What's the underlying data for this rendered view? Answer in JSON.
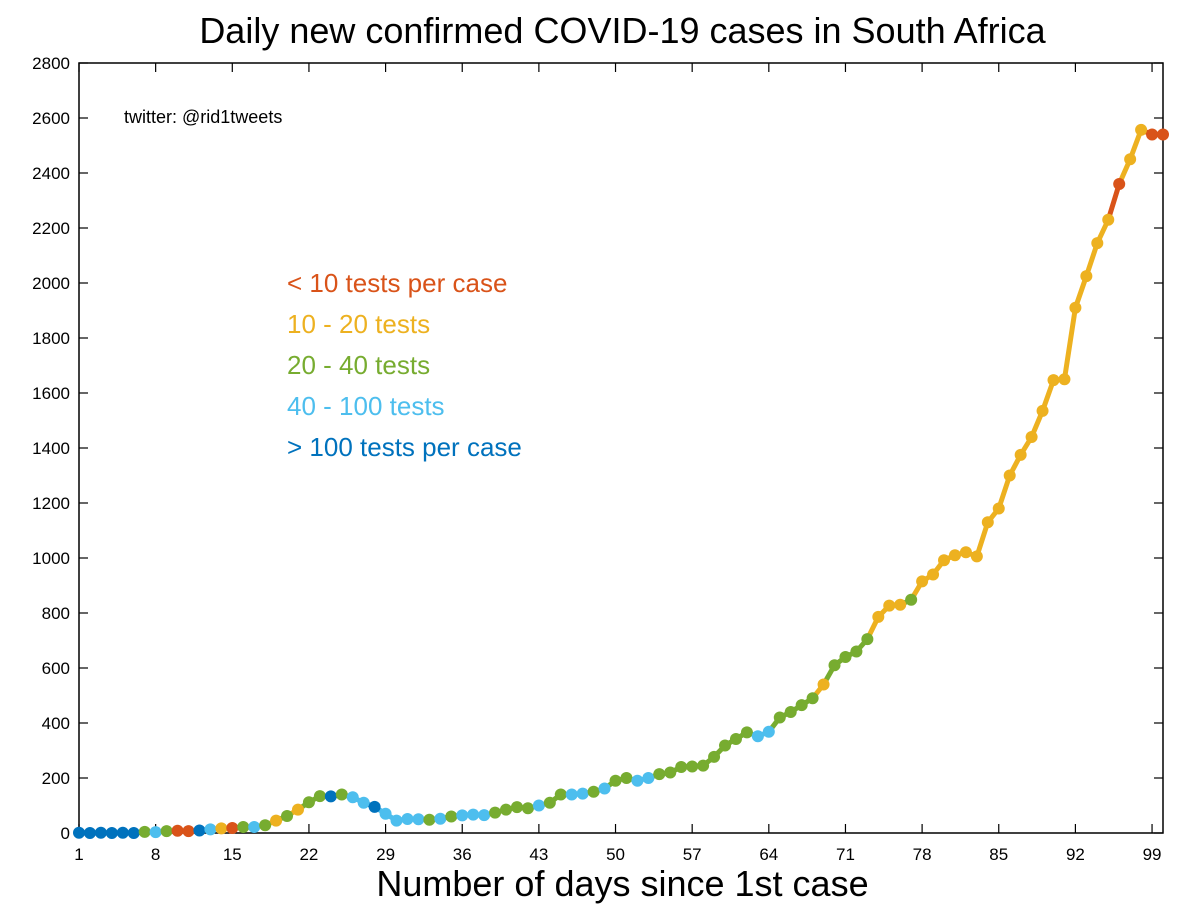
{
  "chart_data": {
    "type": "line",
    "title": "Daily new confirmed COVID-19 cases in South Africa",
    "xlabel": "Number of days since 1st case",
    "ylabel": "",
    "xlim": [
      1,
      100
    ],
    "ylim": [
      0,
      2800
    ],
    "x_ticks": [
      1,
      8,
      15,
      22,
      29,
      36,
      43,
      50,
      57,
      64,
      71,
      78,
      85,
      92,
      99
    ],
    "y_ticks": [
      0,
      200,
      400,
      600,
      800,
      1000,
      1200,
      1400,
      1600,
      1800,
      2000,
      2200,
      2400,
      2600,
      2800
    ],
    "annotation": "twitter: @rid1tweets",
    "categories": [
      {
        "key": "lt10",
        "label": "< 10 tests per case",
        "color": "#D95319"
      },
      {
        "key": "10-20",
        "label": "10 - 20 tests",
        "color": "#EDB120"
      },
      {
        "key": "20-40",
        "label": "20 - 40 tests",
        "color": "#77AC30"
      },
      {
        "key": "40-100",
        "label": "40 - 100 tests",
        "color": "#4DBEEE"
      },
      {
        "key": "gt100",
        "label": "> 100 tests per case",
        "color": "#0072BD"
      }
    ],
    "x": [
      1,
      2,
      3,
      4,
      5,
      6,
      7,
      8,
      9,
      10,
      11,
      12,
      13,
      14,
      15,
      16,
      17,
      18,
      19,
      20,
      21,
      22,
      23,
      24,
      25,
      26,
      27,
      28,
      29,
      30,
      31,
      32,
      33,
      34,
      35,
      36,
      37,
      38,
      39,
      40,
      41,
      42,
      43,
      44,
      45,
      46,
      47,
      48,
      49,
      50,
      51,
      52,
      53,
      54,
      55,
      56,
      57,
      58,
      59,
      60,
      61,
      62,
      63,
      64,
      65,
      66,
      67,
      68,
      69,
      70,
      71,
      72,
      73,
      74,
      75,
      76,
      77,
      78,
      79,
      80,
      81,
      82,
      83,
      84,
      85,
      86,
      87,
      88,
      89,
      90,
      91,
      92,
      93,
      94,
      95,
      96,
      97,
      98,
      99,
      100
    ],
    "y": [
      1,
      0,
      1,
      0,
      1,
      0,
      4,
      3,
      7,
      8,
      7,
      9,
      13,
      17,
      18,
      22,
      22,
      28,
      45,
      62,
      85,
      112,
      134,
      133,
      140,
      130,
      110,
      95,
      70,
      45,
      51,
      50,
      48,
      52,
      60,
      64,
      67,
      65,
      74,
      85,
      94,
      90,
      100,
      110,
      140,
      140,
      143,
      150,
      162,
      190,
      200,
      190,
      200,
      214,
      220,
      240,
      242,
      245,
      277,
      318,
      342,
      366,
      352,
      368,
      420,
      440,
      465,
      490,
      540,
      610,
      640,
      660,
      705,
      786,
      827,
      830,
      848,
      915,
      940,
      992,
      1010,
      1021,
      1006,
      1130,
      1180,
      1300,
      1375,
      1440,
      1535,
      1647,
      1650,
      1910,
      2025,
      2145,
      2230,
      2360,
      2450,
      2557,
      2540,
      2540
    ],
    "category_per_point": [
      "gt100",
      "gt100",
      "gt100",
      "gt100",
      "gt100",
      "gt100",
      "20-40",
      "40-100",
      "20-40",
      "lt10",
      "lt10",
      "gt100",
      "40-100",
      "10-20",
      "lt10",
      "20-40",
      "40-100",
      "20-40",
      "10-20",
      "20-40",
      "10-20",
      "20-40",
      "20-40",
      "gt100",
      "20-40",
      "40-100",
      "40-100",
      "gt100",
      "40-100",
      "40-100",
      "40-100",
      "40-100",
      "20-40",
      "40-100",
      "20-40",
      "40-100",
      "40-100",
      "40-100",
      "20-40",
      "20-40",
      "20-40",
      "20-40",
      "40-100",
      "20-40",
      "20-40",
      "40-100",
      "40-100",
      "20-40",
      "40-100",
      "20-40",
      "20-40",
      "40-100",
      "40-100",
      "20-40",
      "20-40",
      "20-40",
      "20-40",
      "20-40",
      "20-40",
      "20-40",
      "20-40",
      "20-40",
      "40-100",
      "40-100",
      "20-40",
      "20-40",
      "20-40",
      "20-40",
      "10-20",
      "20-40",
      "20-40",
      "20-40",
      "20-40",
      "10-20",
      "10-20",
      "10-20",
      "20-40",
      "10-20",
      "10-20",
      "10-20",
      "10-20",
      "10-20",
      "10-20",
      "10-20",
      "10-20",
      "10-20",
      "10-20",
      "10-20",
      "10-20",
      "10-20",
      "10-20",
      "10-20",
      "10-20",
      "10-20",
      "10-20",
      "lt10",
      "10-20",
      "10-20",
      "lt10",
      "lt10"
    ]
  }
}
